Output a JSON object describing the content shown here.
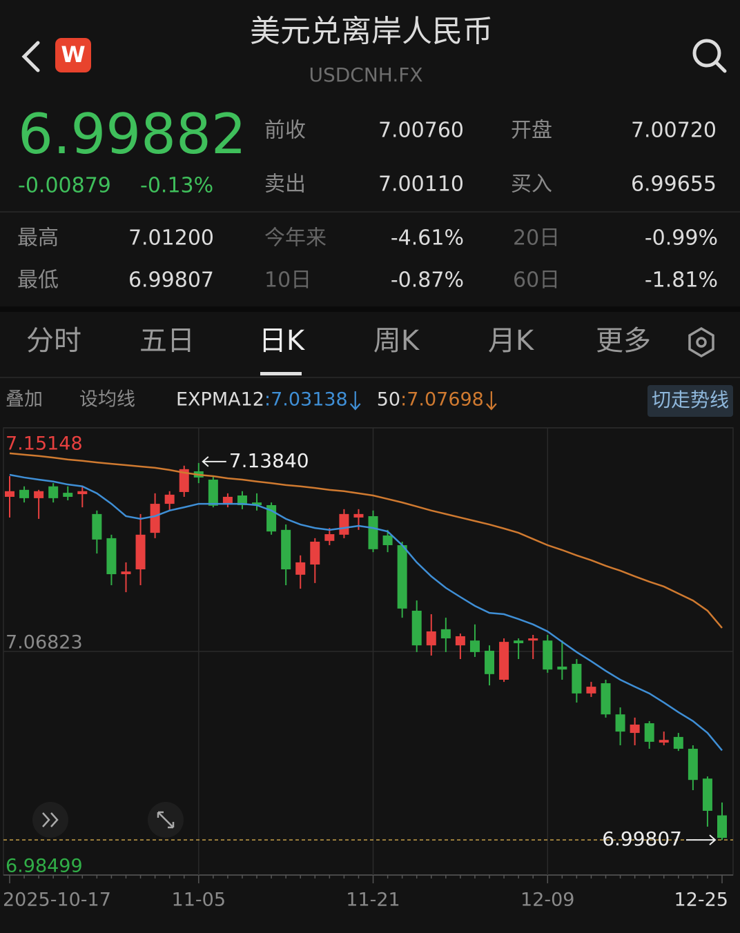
{
  "header": {
    "logo": "W",
    "title": "美元兑离岸人民币",
    "subtitle": "USDCNH.FX"
  },
  "quote": {
    "price": "6.99882",
    "change": "-0.00879",
    "change_pct": "-0.13%",
    "fields": [
      {
        "label": "前收",
        "value": "7.00760"
      },
      {
        "label": "开盘",
        "value": "7.00720"
      },
      {
        "label": "卖出",
        "value": "7.00110"
      },
      {
        "label": "买入",
        "value": "6.99655"
      }
    ],
    "stats": [
      {
        "label": "最高",
        "value": "7.01200"
      },
      {
        "label": "今年来",
        "value": "-4.61%"
      },
      {
        "label": "20日",
        "value": "-0.99%"
      },
      {
        "label": "最低",
        "value": "6.99807"
      },
      {
        "label": "10日",
        "value": "-0.87%"
      },
      {
        "label": "60日",
        "value": "-1.81%"
      }
    ]
  },
  "tabs": [
    "分时",
    "五日",
    "日K",
    "周K",
    "月K",
    "更多"
  ],
  "toolbar": {
    "overlay": "叠加",
    "ma": "设均线",
    "switch": "切走势线"
  },
  "chart_data": {
    "type": "candlestick",
    "categories": [
      "2025-10-17",
      null,
      null,
      null,
      null,
      null,
      null,
      null,
      null,
      null,
      null,
      null,
      null,
      "11-05",
      null,
      null,
      null,
      null,
      null,
      null,
      null,
      null,
      null,
      null,
      null,
      "11-21",
      null,
      null,
      null,
      null,
      null,
      null,
      null,
      null,
      null,
      null,
      null,
      "12-09",
      null,
      null,
      null,
      null,
      null,
      null,
      null,
      null,
      null,
      null,
      null,
      "12-25"
    ],
    "open": [
      7.1258,
      7.1284,
      7.1253,
      7.1297,
      7.1273,
      7.1268,
      7.1194,
      7.1104,
      7.097,
      7.0988,
      7.1124,
      7.1232,
      7.1276,
      7.1353,
      7.1322,
      7.1232,
      7.1263,
      7.1237,
      7.1227,
      7.1135,
      7.0968,
      7.1006,
      7.1094,
      7.1117,
      7.1181,
      7.1186,
      7.1114,
      7.1078,
      7.0834,
      7.0705,
      7.0765,
      7.0705,
      7.0723,
      7.0685,
      7.0577,
      7.0723,
      7.0723,
      7.0723,
      7.0626,
      7.0636,
      7.0526,
      7.0564,
      7.0448,
      7.0379,
      7.0415,
      7.0343,
      7.0364,
      7.032,
      7.0209,
      7.0072
    ],
    "high": [
      7.1335,
      7.1297,
      7.1284,
      7.1309,
      7.1297,
      7.1297,
      7.1207,
      7.1117,
      7.1014,
      7.1194,
      7.1271,
      7.1279,
      7.1374,
      7.1384,
      7.1335,
      7.1271,
      7.1279,
      7.1271,
      7.1237,
      7.1155,
      7.104,
      7.1104,
      7.1142,
      7.1212,
      7.1212,
      7.1207,
      7.1135,
      7.1091,
      7.0872,
      7.0821,
      7.0808,
      7.0749,
      7.0783,
      7.0705,
      7.0731,
      7.0731,
      7.0744,
      7.0744,
      7.0723,
      7.0654,
      7.0569,
      7.0577,
      7.0474,
      7.0436,
      7.0423,
      7.0384,
      7.0379,
      7.0333,
      7.0217,
      7.012
    ],
    "low": [
      7.1181,
      7.1237,
      7.1176,
      7.1237,
      7.1245,
      7.1219,
      7.1047,
      7.0929,
      7.0903,
      7.0929,
      7.1104,
      7.1207,
      7.1258,
      7.1309,
      7.1219,
      7.1219,
      7.1212,
      7.1207,
      7.1117,
      7.0929,
      7.0916,
      7.0937,
      7.1078,
      7.1104,
      7.1135,
      7.1052,
      7.1052,
      7.0808,
      7.068,
      7.0667,
      7.068,
      7.0654,
      7.0662,
      7.0556,
      7.0569,
      7.0654,
      7.0654,
      7.0603,
      7.0577,
      7.0492,
      7.0513,
      7.0436,
      7.0333,
      7.0333,
      7.032,
      7.0333,
      7.0312,
      7.0166,
      7.003,
      6.99807
    ],
    "close": [
      7.1279,
      7.1253,
      7.1279,
      7.1253,
      7.1258,
      7.1279,
      7.1099,
      7.097,
      7.098,
      7.1117,
      7.1232,
      7.1266,
      7.1361,
      7.133,
      7.1225,
      7.1258,
      7.1227,
      7.1227,
      7.1129,
      7.0988,
      7.1014,
      7.1091,
      7.1119,
      7.1194,
      7.1194,
      7.1063,
      7.1078,
      7.0842,
      7.0705,
      7.0757,
      7.0731,
      7.0739,
      7.068,
      7.0598,
      7.0718,
      7.0713,
      7.0731,
      7.0615,
      7.0615,
      7.0526,
      7.0551,
      7.0448,
      7.0384,
      7.041,
      7.0346,
      7.0353,
      7.032,
      7.0204,
      7.0089,
      6.99882
    ],
    "high_value_labels": [
      null,
      null,
      null,
      null,
      null,
      null,
      null,
      null,
      null,
      null,
      null,
      null,
      null,
      "7.13840",
      null,
      null,
      null,
      null,
      null,
      null,
      null,
      null,
      null,
      null,
      null,
      null,
      null,
      null,
      null,
      null,
      null,
      null,
      null,
      null,
      null,
      null,
      null,
      null,
      null,
      null,
      null,
      null,
      null,
      null,
      null,
      null,
      null,
      null,
      null,
      null
    ],
    "up_color": "#e8403f",
    "down_color": "#30ae47",
    "legend_separator": ":",
    "series": [
      {
        "name": "EXPMA12",
        "color": "#3f8fd6",
        "values": [
          7.134,
          7.133,
          7.1322,
          7.1315,
          7.1304,
          7.1297,
          7.1271,
          7.1232,
          7.1186,
          7.1176,
          7.1186,
          7.1207,
          7.1219,
          7.1232,
          7.1232,
          7.1232,
          7.1232,
          7.1227,
          7.1207,
          7.1176,
          7.1155,
          7.1142,
          7.1135,
          7.1142,
          7.115,
          7.1142,
          7.1129,
          7.1078,
          7.1014,
          7.0962,
          7.0919,
          7.0885,
          7.0852,
          7.0826,
          7.0821,
          7.0803,
          7.0783,
          7.0757,
          7.0718,
          7.068,
          7.0646,
          7.061,
          7.0577,
          7.0551,
          7.0526,
          7.0492,
          7.0456,
          7.0423,
          7.0379,
          7.03138
        ]
      },
      {
        "name": "50",
        "color": "#d07a30",
        "values": [
          7.142,
          7.1415,
          7.141,
          7.1404,
          7.1397,
          7.1392,
          7.1386,
          7.1381,
          7.1376,
          7.1371,
          7.1366,
          7.1358,
          7.1348,
          7.134,
          7.1335,
          7.1327,
          7.1322,
          7.1315,
          7.1309,
          7.1302,
          7.1297,
          7.1291,
          7.1284,
          7.1279,
          7.1271,
          7.1263,
          7.125,
          7.1237,
          7.1222,
          7.1207,
          7.1194,
          7.1181,
          7.1168,
          7.1155,
          7.114,
          7.1124,
          7.1101,
          7.1078,
          7.106,
          7.104,
          7.1022,
          7.1001,
          7.0983,
          7.0962,
          7.0942,
          7.0924,
          7.0898,
          7.0872,
          7.0834,
          7.07698
        ]
      }
    ],
    "ylim": [
      6.98499,
      7.15148
    ],
    "yticks": [
      6.98499,
      7.06823,
      7.15148
    ],
    "grid": true
  }
}
